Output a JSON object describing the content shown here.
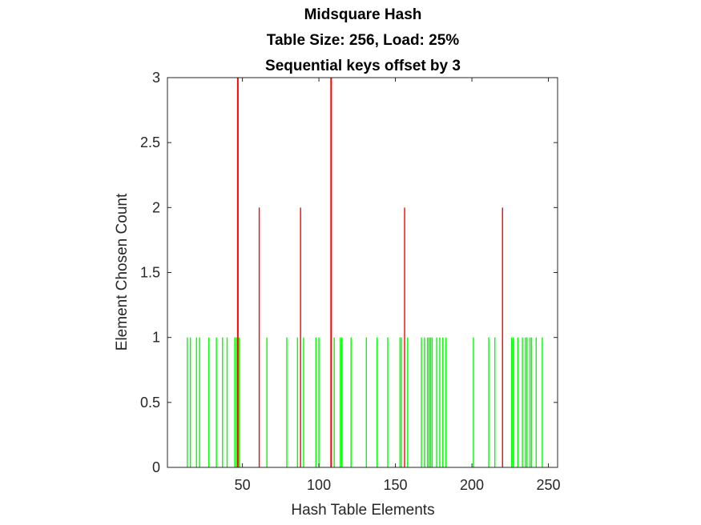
{
  "chart_data": {
    "type": "bar",
    "title_lines": [
      "Midsquare Hash",
      "Table Size: 256, Load: 25%",
      "Sequential keys offset by 3"
    ],
    "xlabel": "Hash Table Elements",
    "ylabel": "Element Chosen Count",
    "xlim": [
      1,
      256
    ],
    "ylim": [
      0,
      3
    ],
    "xticks": [
      50,
      100,
      150,
      200,
      250
    ],
    "yticks": [
      0,
      0.5,
      1,
      1.5,
      2,
      2.5,
      3
    ],
    "grid": false,
    "single_color": "#00ff00",
    "collision_color": "#ff0000",
    "series": [
      {
        "values_at": [
          {
            "x": 14,
            "y": 1
          },
          {
            "x": 16,
            "y": 1
          },
          {
            "x": 20,
            "y": 1
          },
          {
            "x": 22,
            "y": 1
          },
          {
            "x": 28,
            "y": 1
          },
          {
            "x": 33,
            "y": 1
          },
          {
            "x": 37,
            "y": 1
          },
          {
            "x": 40,
            "y": 1
          },
          {
            "x": 45,
            "y": 1
          },
          {
            "x": 46,
            "y": 1
          },
          {
            "x": 47,
            "y": 3
          },
          {
            "x": 48,
            "y": 1
          },
          {
            "x": 61,
            "y": 2
          },
          {
            "x": 66,
            "y": 1
          },
          {
            "x": 79,
            "y": 1
          },
          {
            "x": 86,
            "y": 1
          },
          {
            "x": 88,
            "y": 2
          },
          {
            "x": 90,
            "y": 1
          },
          {
            "x": 98,
            "y": 1
          },
          {
            "x": 100,
            "y": 1
          },
          {
            "x": 108,
            "y": 3
          },
          {
            "x": 110,
            "y": 1
          },
          {
            "x": 114,
            "y": 1
          },
          {
            "x": 115,
            "y": 1
          },
          {
            "x": 121,
            "y": 1
          },
          {
            "x": 131,
            "y": 1
          },
          {
            "x": 138,
            "y": 1
          },
          {
            "x": 145,
            "y": 1
          },
          {
            "x": 153,
            "y": 1
          },
          {
            "x": 154,
            "y": 1
          },
          {
            "x": 156,
            "y": 2
          },
          {
            "x": 158,
            "y": 1
          },
          {
            "x": 167,
            "y": 1
          },
          {
            "x": 169,
            "y": 1
          },
          {
            "x": 171,
            "y": 1
          },
          {
            "x": 172,
            "y": 1
          },
          {
            "x": 173,
            "y": 1
          },
          {
            "x": 174,
            "y": 1
          },
          {
            "x": 177,
            "y": 1
          },
          {
            "x": 179,
            "y": 1
          },
          {
            "x": 181,
            "y": 1
          },
          {
            "x": 183,
            "y": 1
          },
          {
            "x": 201,
            "y": 1
          },
          {
            "x": 211,
            "y": 1
          },
          {
            "x": 215,
            "y": 1
          },
          {
            "x": 220,
            "y": 2
          },
          {
            "x": 226,
            "y": 1
          },
          {
            "x": 227,
            "y": 1
          },
          {
            "x": 230,
            "y": 1
          },
          {
            "x": 233,
            "y": 1
          },
          {
            "x": 235,
            "y": 1
          },
          {
            "x": 236,
            "y": 1
          },
          {
            "x": 238,
            "y": 1
          },
          {
            "x": 239,
            "y": 1
          },
          {
            "x": 242,
            "y": 1
          },
          {
            "x": 246,
            "y": 1
          }
        ]
      }
    ]
  }
}
